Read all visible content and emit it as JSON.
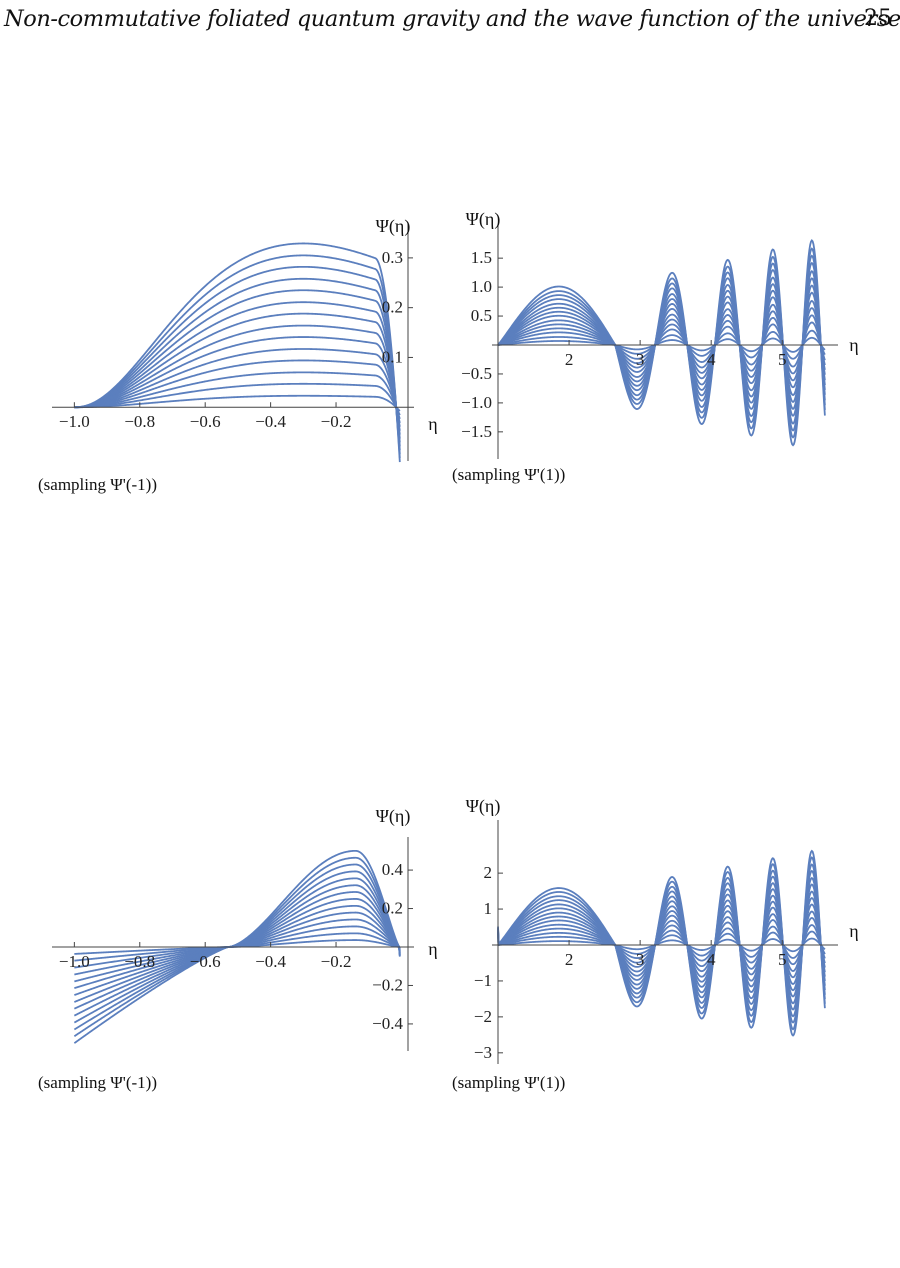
{
  "header": {
    "title": "Non-commutative foliated quantum gravity and the wave function of the universe",
    "page_number": "25"
  },
  "style": {
    "curve_color": "#5b7fbe",
    "axis_color": "#444444"
  },
  "chart_data": [
    {
      "type": "line",
      "panel": "top-left",
      "title": "",
      "caption": "(sampling Ψ'(-1))",
      "xlabel": "η",
      "ylabel": "Ψ(η)",
      "xlim": [
        -1.05,
        0.02
      ],
      "ylim": [
        -0.1,
        0.35
      ],
      "x_ticks": [
        "−1.0",
        "−0.8",
        "−0.6",
        "−0.4",
        "−0.2"
      ],
      "y_ticks": [
        "0.1",
        "0.2",
        "0.3"
      ],
      "series_count": 14,
      "peak_amplitudes": [
        0.023,
        0.047,
        0.07,
        0.094,
        0.117,
        0.141,
        0.164,
        0.188,
        0.211,
        0.235,
        0.258,
        0.282,
        0.305,
        0.329
      ],
      "peak_x": -0.3
    },
    {
      "type": "line",
      "panel": "top-right",
      "title": "",
      "caption": "(sampling Ψ'(1))",
      "xlabel": "η",
      "ylabel": "Ψ(η)",
      "xlim": [
        1.0,
        5.7
      ],
      "ylim": [
        -1.9,
        1.9
      ],
      "x_ticks": [
        "2",
        "3",
        "4",
        "5"
      ],
      "y_ticks": [
        "−1.5",
        "−1.0",
        "−0.5",
        "0.5",
        "1.0",
        "1.5"
      ],
      "series_count": 14,
      "first_peak_amplitudes": [
        0.07,
        0.14,
        0.22,
        0.29,
        0.36,
        0.43,
        0.51,
        0.58,
        0.65,
        0.72,
        0.8,
        0.87,
        0.94,
        1.02
      ],
      "growth_to_end": 1.85
    },
    {
      "type": "line",
      "panel": "bottom-left",
      "title": "",
      "caption": "(sampling Ψ'(-1))",
      "xlabel": "η",
      "ylabel": "Ψ(η)",
      "xlim": [
        -1.05,
        0.02
      ],
      "ylim": [
        -0.52,
        0.52
      ],
      "x_ticks": [
        "−1.0",
        "−0.8",
        "−0.6",
        "−0.4",
        "−0.2"
      ],
      "y_ticks": [
        "−0.4",
        "−0.2",
        "0.2",
        "0.4"
      ],
      "series_count": 14,
      "peak_amplitudes": [
        0.036,
        0.071,
        0.107,
        0.143,
        0.179,
        0.214,
        0.25,
        0.286,
        0.321,
        0.357,
        0.393,
        0.429,
        0.464,
        0.5
      ],
      "crossing_x": -0.53,
      "peak_x": -0.14
    },
    {
      "type": "line",
      "panel": "bottom-right",
      "title": "",
      "caption": "(sampling Ψ'(1))",
      "xlabel": "η",
      "ylabel": "Ψ(η)",
      "xlim": [
        1.0,
        5.7
      ],
      "ylim": [
        -3.2,
        3.2
      ],
      "x_ticks": [
        "2",
        "3",
        "4",
        "5"
      ],
      "y_ticks": [
        "−3",
        "−2",
        "−1",
        "1",
        "2"
      ],
      "series_count": 14,
      "first_peak_amplitudes": [
        0.11,
        0.23,
        0.34,
        0.46,
        0.57,
        0.69,
        0.8,
        0.91,
        1.03,
        1.14,
        1.26,
        1.37,
        1.49,
        1.6
      ],
      "growth_to_end": 1.7
    }
  ]
}
